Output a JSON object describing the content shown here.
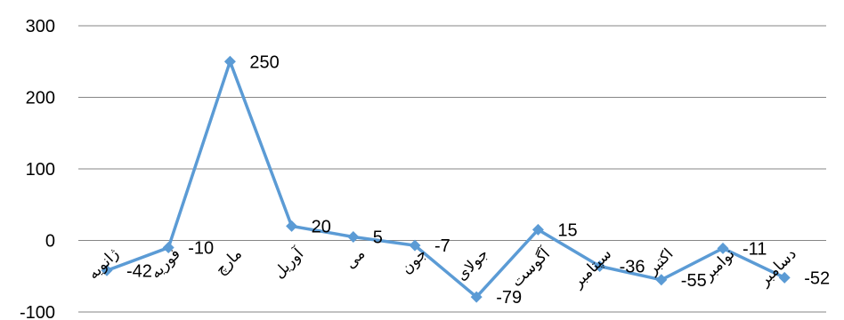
{
  "chart_data": {
    "type": "line",
    "categories": [
      "ژانویه",
      "فوریه",
      "مارچ",
      "آوریل",
      "می",
      "جون",
      "جولای",
      "آگوست",
      "سپتامبر",
      "اکتبر",
      "نوامبر",
      "دسامبر"
    ],
    "series": [
      {
        "values": [
          -42,
          -10,
          250,
          20,
          5,
          -7,
          -79,
          15,
          -36,
          -55,
          -11,
          -52
        ],
        "data_labels": [
          "-42",
          "-10",
          "250",
          "20",
          "5",
          "-7",
          "-79",
          "15",
          "-36",
          "-55",
          "-11",
          "-52"
        ],
        "color": "#5b9bd5",
        "marker": "diamond"
      }
    ],
    "yaxis": {
      "min": -100,
      "max": 300,
      "ticks": [
        -100,
        0,
        100,
        200,
        300
      ],
      "tick_labels": [
        "-100",
        "0",
        "100",
        "200",
        "300"
      ]
    },
    "grid": true,
    "gridline_color": "#868686",
    "legend": "none"
  }
}
